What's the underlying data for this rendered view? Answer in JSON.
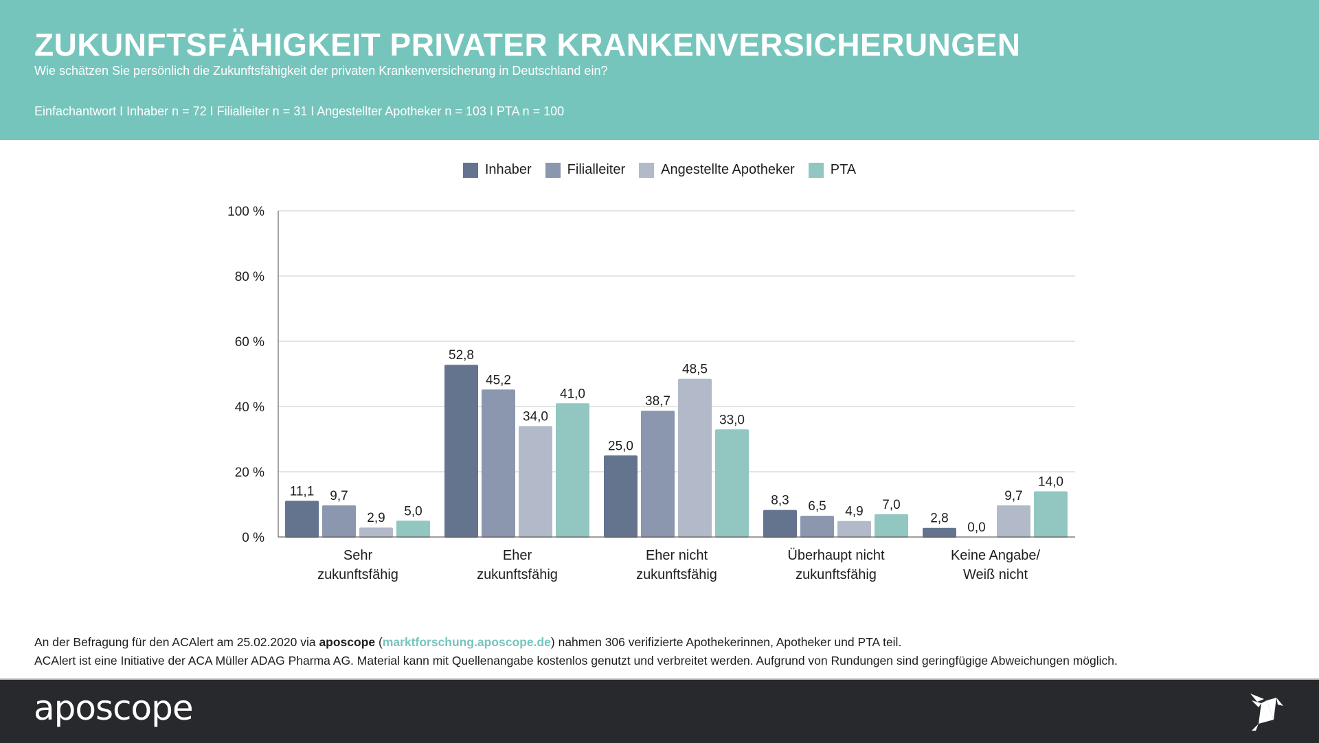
{
  "header": {
    "title": "ZUKUNFTSFÄHIGKEIT PRIVATER KRANKENVERSICHERUNGEN",
    "subtitle": "Wie schätzen Sie persönlich die Zukunftsfähigkeit der privaten Krankenversicherung in Deutschland ein?",
    "meta": "Einfachantwort I Inhaber n = 72 I Filialleiter n = 31 I Angestellter Apotheker n = 103 I PTA n = 100"
  },
  "colors": {
    "header_bg": "#76c5bc",
    "footer_bg": "#28292d",
    "link": "#76c5bc"
  },
  "chart_data": {
    "type": "bar",
    "title": "",
    "xlabel": "",
    "ylabel": "",
    "ylim": [
      0,
      100
    ],
    "y_ticks": [
      0,
      20,
      40,
      60,
      80,
      100
    ],
    "y_tick_labels": [
      "0 %",
      "20 %",
      "40 %",
      "60 %",
      "80 %",
      "100 %"
    ],
    "grid": true,
    "legend_position": "top-center",
    "categories": [
      [
        "Sehr",
        "zukunftsfähig"
      ],
      [
        "Eher",
        "zukunftsfähig"
      ],
      [
        "Eher nicht",
        "zukunftsfähig"
      ],
      [
        "Überhaupt nicht",
        "zukunftsfähig"
      ],
      [
        "Keine Angabe/",
        "Weiß nicht"
      ]
    ],
    "series": [
      {
        "name": "Inhaber",
        "color": "#64748f",
        "values": [
          11.1,
          52.8,
          25.0,
          8.3,
          2.8
        ],
        "labels": [
          "11,1",
          "52,8",
          "25,0",
          "8,3",
          "2,8"
        ]
      },
      {
        "name": "Filialleiter",
        "color": "#8b97ae",
        "values": [
          9.7,
          45.2,
          38.7,
          6.5,
          0.0
        ],
        "labels": [
          "9,7",
          "45,2",
          "38,7",
          "6,5",
          "0,0"
        ]
      },
      {
        "name": "Angestellte Apotheker",
        "color": "#b2bac9",
        "values": [
          2.9,
          34.0,
          48.5,
          4.9,
          9.7
        ],
        "labels": [
          "2,9",
          "34,0",
          "48,5",
          "4,9",
          "9,7"
        ]
      },
      {
        "name": "PTA",
        "color": "#91c7c0",
        "values": [
          5.0,
          41.0,
          33.0,
          7.0,
          14.0
        ],
        "labels": [
          "5,0",
          "41,0",
          "33,0",
          "7,0",
          "14,0"
        ]
      }
    ]
  },
  "footer": {
    "line1_prefix": "An der Befragung für den ACAlert am 25.02.2020 via ",
    "line1_brand": "aposcope",
    "line1_open": " (",
    "line1_link": "marktforschung.aposcope.de",
    "line1_suffix": ") nahmen 306 verifizierte Apothekerinnen, Apotheker und PTA teil.",
    "line2": "ACAlert ist eine Initiative der ACA Müller ADAG Pharma AG. Material kann mit Quellenangabe kostenlos genutzt und verbreitet werden. Aufgrund von Rundungen sind geringfügige Abweichungen möglich.",
    "brand_logo": "aposcope",
    "logo_icon": "origami-bird-icon"
  }
}
